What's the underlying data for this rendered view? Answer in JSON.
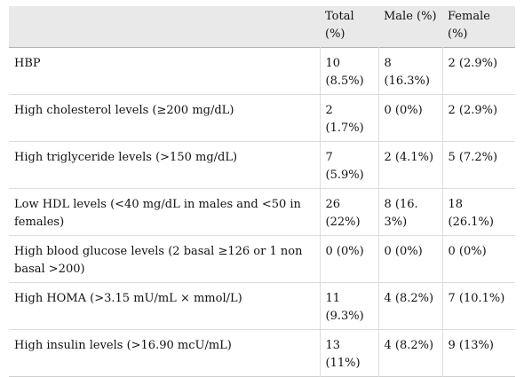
{
  "table": {
    "headers": [
      "",
      "Total (%)",
      "Male (%)",
      "Female (%)"
    ],
    "rows": [
      [
        "HBP",
        "10 (8.5%)",
        "8 (16.3%)",
        "2 (2.9%)"
      ],
      [
        "High cholesterol levels (≥200 mg/dL)",
        "2 (1.7%)",
        "0 (0%)",
        "2 (2.9%)"
      ],
      [
        "High triglyceride levels (>150 mg/dL)",
        "7 (5.9%)",
        "2 (4.1%)",
        "5 (7.2%)"
      ],
      [
        "Low HDL levels (<40 mg/dL in males and <50 in females)",
        "26 (22%)",
        "8 (16. 3%)",
        "18 (26.1%)"
      ],
      [
        "High blood glucose levels (2 basal ≥126 or 1 non basal >200)",
        "0 (0%)",
        "0 (0%)",
        "0 (0%)"
      ],
      [
        "High HOMA (>3.15 mU/mL × mmol/L)",
        "11 (9.3%)",
        "4 (8.2%)",
        "7 (10.1%)"
      ],
      [
        "High insulin levels (>16.90 mcU/mL)",
        "13 (11%)",
        "4 (8.2%)",
        "9 (13%)"
      ]
    ]
  }
}
